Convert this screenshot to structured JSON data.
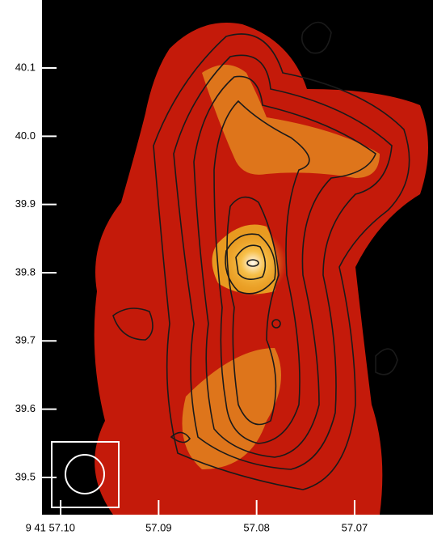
{
  "chart_data": {
    "type": "contour",
    "xlim": [
      57.1019,
      57.062
    ],
    "ylim": [
      39.4454,
      40.1996
    ],
    "xticks": [
      {
        "value": 57.1,
        "label": "9 41 57.10"
      },
      57.09,
      57.08,
      57.07
    ],
    "yticks": [
      39.5,
      39.6,
      39.7,
      39.8,
      39.9,
      {
        "value": 40.0,
        "label": "40.0"
      },
      40.1
    ],
    "background": "#000000",
    "tick_color": "#ffffff"
  }
}
